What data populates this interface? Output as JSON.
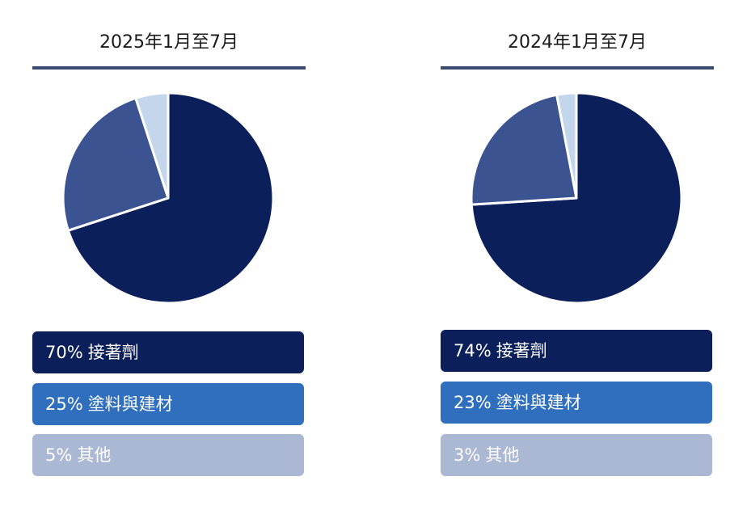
{
  "colors": {
    "adhesive": "#0b1f5a",
    "coatings": "#3b5391",
    "other_pie": "#c3d6ec",
    "box_adhesive": "#0b1f5a",
    "box_coatings": "#2f6fbe",
    "box_other": "#aab8d4",
    "rule": "#3a4a72"
  },
  "chart_data": [
    {
      "type": "pie",
      "title": "2025年1月至7月",
      "slices": [
        {
          "label": "接著劑",
          "value": 70,
          "pct_label": "70%"
        },
        {
          "label": "塗料與建材",
          "value": 25,
          "pct_label": "25%"
        },
        {
          "label": "其他",
          "value": 5,
          "pct_label": "5%"
        }
      ]
    },
    {
      "type": "pie",
      "title": "2024年1月至7月",
      "slices": [
        {
          "label": "接著劑",
          "value": 74,
          "pct_label": "74%"
        },
        {
          "label": "塗料與建材",
          "value": 23,
          "pct_label": "23%"
        },
        {
          "label": "其他",
          "value": 3,
          "pct_label": "3%"
        }
      ]
    }
  ]
}
